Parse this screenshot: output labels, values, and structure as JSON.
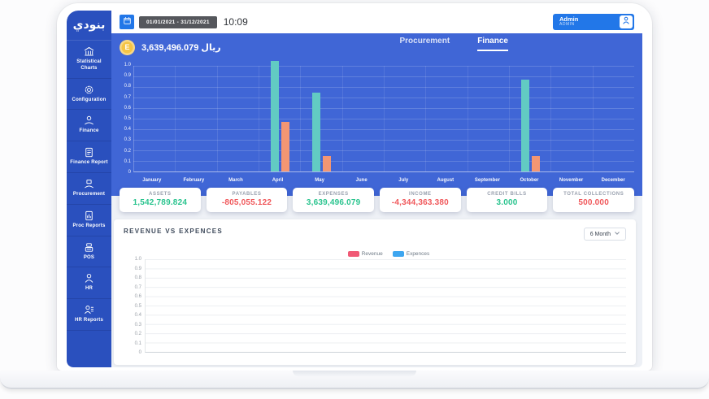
{
  "sidebar": {
    "logo_text": "بنودي",
    "items": [
      {
        "label": "Statistical Charts",
        "icon": "bank-icon"
      },
      {
        "label": "Configuration",
        "icon": "gear-icon"
      },
      {
        "label": "Finance",
        "icon": "hand-coin-icon"
      },
      {
        "label": "Finance Report",
        "icon": "finance-report-icon"
      },
      {
        "label": "Procurement",
        "icon": "procurement-icon"
      },
      {
        "label": "Proc Reports",
        "icon": "proc-reports-icon"
      },
      {
        "label": "POS",
        "icon": "pos-icon"
      },
      {
        "label": "HR",
        "icon": "hr-icon"
      },
      {
        "label": "HR Reports",
        "icon": "hr-reports-icon"
      }
    ]
  },
  "topbar": {
    "date_range": "01/01/2021 - 31/12/2021",
    "time": "10:09",
    "user_name": "Admin",
    "user_role": "ADMIN"
  },
  "finance_header": {
    "coin_letter": "E",
    "amount": "3,639,496.079",
    "currency": "ريال",
    "tabs": [
      {
        "label": "Procurement",
        "active": false
      },
      {
        "label": "Finance",
        "active": true
      }
    ]
  },
  "stats_cards": [
    {
      "label": "ASSETS",
      "value": "1,542,789.824",
      "color": "green"
    },
    {
      "label": "PAYABLES",
      "value": "-805,055.122",
      "color": "red"
    },
    {
      "label": "EXPENSES",
      "value": "3,639,496.079",
      "color": "green"
    },
    {
      "label": "INCOME",
      "value": "-4,344,363.380",
      "color": "red"
    },
    {
      "label": "CREDIT BILLS",
      "value": "3.000",
      "color": "green"
    },
    {
      "label": "TOTAL COLLECTIONS",
      "value": "500.000",
      "color": "red"
    }
  ],
  "revenue_section": {
    "title": "REVENUE VS EXPENCES",
    "period_select": "6 Month",
    "legend": [
      {
        "label": "Revenue",
        "color": "#F05A76"
      },
      {
        "label": "Expences",
        "color": "#3EA6F0"
      }
    ]
  },
  "chart_data": [
    {
      "id": "monthly-finance-bars",
      "type": "bar",
      "categories": [
        "January",
        "February",
        "March",
        "April",
        "May",
        "June",
        "July",
        "August",
        "September",
        "October",
        "November",
        "December"
      ],
      "series": [
        {
          "name": "series-teal",
          "color": "#62CBC3",
          "values": [
            0,
            0,
            0,
            1.05,
            0.75,
            0,
            0,
            0,
            0,
            0.87,
            0,
            0
          ]
        },
        {
          "name": "series-orange",
          "color": "#F39673",
          "values": [
            0,
            0,
            0,
            0.47,
            0.15,
            0,
            0,
            0,
            0,
            0.15,
            0,
            0
          ]
        }
      ],
      "ylim": [
        0,
        1.0
      ],
      "y_ticks": [
        "1.0",
        "0.9",
        "0.8",
        "0.7",
        "0.6",
        "0.5",
        "0.4",
        "0.3",
        "0.2",
        "0.1",
        "0"
      ],
      "grid": true,
      "legend_position": "none",
      "background": "#4066D6"
    },
    {
      "id": "revenue-vs-expences",
      "type": "line",
      "title": "REVENUE VS EXPENCES",
      "series": [
        {
          "name": "Revenue",
          "color": "#F05A76",
          "values": []
        },
        {
          "name": "Expences",
          "color": "#3EA6F0",
          "values": []
        }
      ],
      "ylim": [
        0,
        1.0
      ],
      "y_ticks": [
        "1.0",
        "0.9",
        "0.8",
        "0.7",
        "0.6",
        "0.5",
        "0.4",
        "0.3",
        "0.2",
        "0.1",
        "0"
      ],
      "grid": true,
      "legend_position": "top-center"
    }
  ],
  "colors": {
    "sidebar_blue": "#2A50BE",
    "panel_blue": "#4066D6",
    "accent_blue": "#2277E8",
    "green": "#2BC48F",
    "red": "#F0595C",
    "teal_bar": "#62CBC3",
    "orange_bar": "#F39673",
    "coin_yellow": "#F5C445"
  }
}
